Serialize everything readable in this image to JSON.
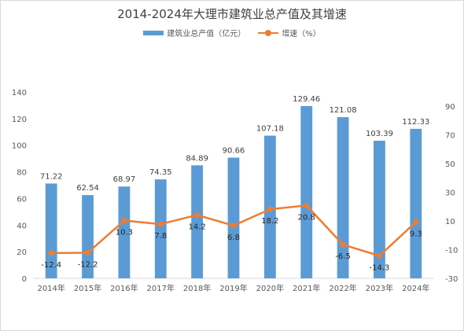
{
  "chart_data": {
    "type": "bar",
    "title": "2014-2024年大理市建筑业总产值及其增速",
    "categories": [
      "2014年",
      "2015年",
      "2016年",
      "2017年",
      "2018年",
      "2019年",
      "2020年",
      "2021年",
      "2022年",
      "2023年",
      "2024年"
    ],
    "series": [
      {
        "name": "建筑业总产值（亿元）",
        "type": "bar",
        "axis": "left",
        "color": "#5b9bd5",
        "values": [
          71.22,
          62.54,
          68.97,
          74.35,
          84.89,
          90.66,
          107.18,
          129.46,
          121.08,
          103.39,
          112.33
        ]
      },
      {
        "name": "增速（%）",
        "type": "line",
        "axis": "right",
        "color": "#ed7d31",
        "values": [
          -12.4,
          -12.2,
          10.3,
          7.8,
          14.2,
          6.8,
          18.2,
          20.8,
          -6.5,
          -14.3,
          9.3
        ]
      }
    ],
    "y_left": {
      "min": 0,
      "max": 140,
      "ticks": [
        "0",
        "20",
        "40",
        "60",
        "80",
        "100",
        "120",
        "140"
      ]
    },
    "y_right": {
      "min": -30,
      "max": 100,
      "ticks": [
        "-30",
        "-10",
        "10",
        "30",
        "50",
        "70",
        "90"
      ]
    },
    "grid": false,
    "legend_position": "top"
  }
}
